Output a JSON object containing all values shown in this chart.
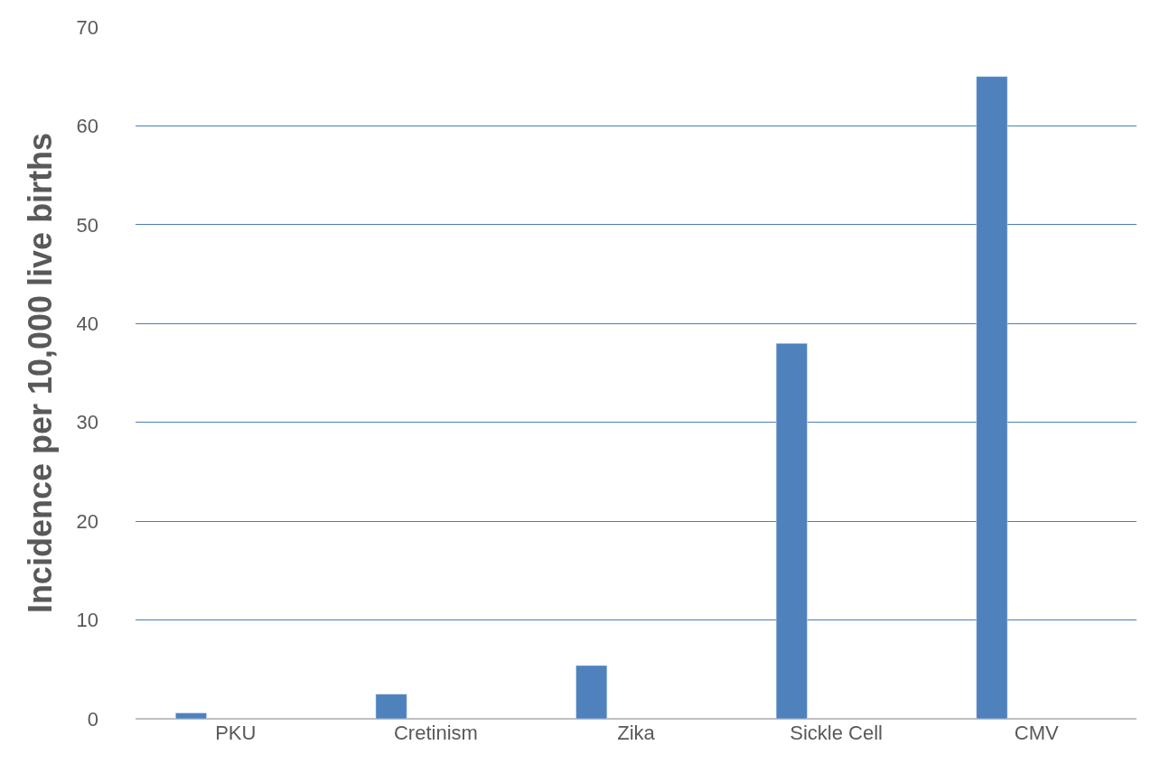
{
  "chart_data": {
    "type": "bar",
    "ylabel": "Incidence per 10,000 live births",
    "categories": [
      "PKU",
      "Cretinism",
      "Zika",
      "Sickle Cell",
      "CMV"
    ],
    "values": [
      0.6,
      2.5,
      5.4,
      38,
      65
    ],
    "color": "#4f81bd",
    "ylim": [
      0,
      70
    ],
    "yticks": [
      0,
      10,
      20,
      30,
      40,
      50,
      60,
      70
    ],
    "grid": "y"
  }
}
